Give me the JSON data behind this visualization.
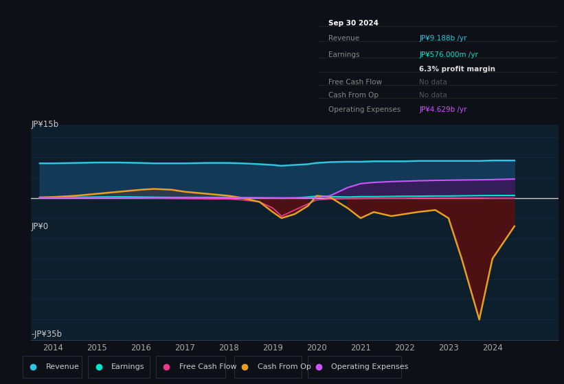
{
  "bg_color": "#0d1117",
  "chart_bg": "#0d1f2d",
  "ylim": [
    -35,
    18
  ],
  "xlim": [
    2013.5,
    2025.5
  ],
  "x_ticks": [
    2014,
    2015,
    2016,
    2017,
    2018,
    2019,
    2020,
    2021,
    2022,
    2023,
    2024
  ],
  "y_label_top": "JP¥15b",
  "y_label_bottom": "-JP¥35b",
  "y_zero_label": "JP¥0",
  "info_box": {
    "date": "Sep 30 2024",
    "revenue_label": "Revenue",
    "revenue_value": "JP¥9.188b /yr",
    "earnings_label": "Earnings",
    "earnings_value": "JP¥576.000m /yr",
    "profit_margin": "6.3% profit margin",
    "fcf_label": "Free Cash Flow",
    "fcf_value": "No data",
    "cfop_label": "Cash From Op",
    "cfop_value": "No data",
    "opex_label": "Operating Expenses",
    "opex_value": "JP¥4.629b /yr"
  },
  "years": [
    2013.7,
    2014.0,
    2014.5,
    2015.0,
    2015.5,
    2016.0,
    2016.3,
    2016.7,
    2017.0,
    2017.5,
    2018.0,
    2018.3,
    2018.7,
    2019.0,
    2019.2,
    2019.5,
    2019.8,
    2020.0,
    2020.3,
    2020.7,
    2021.0,
    2021.3,
    2021.7,
    2022.0,
    2022.3,
    2022.7,
    2023.0,
    2023.3,
    2023.7,
    2024.0,
    2024.5
  ],
  "revenue": [
    8.5,
    8.5,
    8.6,
    8.7,
    8.7,
    8.6,
    8.5,
    8.5,
    8.5,
    8.6,
    8.6,
    8.5,
    8.3,
    8.1,
    7.9,
    8.1,
    8.3,
    8.6,
    8.8,
    8.9,
    8.9,
    9.0,
    9.0,
    9.0,
    9.1,
    9.1,
    9.1,
    9.1,
    9.1,
    9.2,
    9.2
  ],
  "earnings": [
    0.1,
    0.1,
    0.15,
    0.2,
    0.25,
    0.2,
    0.15,
    0.1,
    0.1,
    0.1,
    0.1,
    0.05,
    0.0,
    -0.05,
    -0.1,
    -0.05,
    0.2,
    0.4,
    0.3,
    0.2,
    0.3,
    0.3,
    0.35,
    0.4,
    0.4,
    0.45,
    0.45,
    0.5,
    0.55,
    0.57,
    0.58
  ],
  "free_cash_flow": [
    0.05,
    0.05,
    0.05,
    0.02,
    0.0,
    -0.05,
    -0.1,
    -0.15,
    -0.2,
    -0.25,
    -0.3,
    -0.5,
    -1.0,
    -2.5,
    -4.5,
    -3.0,
    -1.5,
    -0.5,
    -0.3,
    -0.2,
    -0.15,
    -0.1,
    -0.1,
    -0.1,
    -0.05,
    -0.05,
    -0.05,
    -0.05,
    -0.05,
    -0.1,
    -0.1
  ],
  "cash_from_op": [
    0.1,
    0.2,
    0.5,
    1.0,
    1.5,
    2.0,
    2.2,
    2.0,
    1.5,
    1.0,
    0.5,
    0.0,
    -1.0,
    -3.5,
    -5.0,
    -4.0,
    -2.0,
    0.5,
    0.2,
    -2.5,
    -5.0,
    -3.5,
    -4.5,
    -4.0,
    -3.5,
    -3.0,
    -5.0,
    -15.0,
    -30.0,
    -15.0,
    -7.0
  ],
  "operating_expenses": [
    0.0,
    0.0,
    0.0,
    0.0,
    0.0,
    0.0,
    0.0,
    0.0,
    0.0,
    0.0,
    0.0,
    0.0,
    0.0,
    0.0,
    0.0,
    0.0,
    0.0,
    0.0,
    0.5,
    2.5,
    3.5,
    3.8,
    4.0,
    4.1,
    4.2,
    4.3,
    4.35,
    4.4,
    4.45,
    4.5,
    4.63
  ],
  "colors": {
    "revenue": "#2fc4e0",
    "earnings": "#00e5cc",
    "free_cash_flow": "#e83a8c",
    "cash_from_op": "#e8a020",
    "operating_expenses": "#cc55ff",
    "revenue_fill": "#144060",
    "cash_fill_pos": "#3a3a4a",
    "cash_fill_neg": "#5a0f0f",
    "opex_fill": "#3a1a5a"
  },
  "legend": [
    {
      "label": "Revenue",
      "color": "#2fc4e0"
    },
    {
      "label": "Earnings",
      "color": "#00e5cc"
    },
    {
      "label": "Free Cash Flow",
      "color": "#e83a8c"
    },
    {
      "label": "Cash From Op",
      "color": "#e8a020"
    },
    {
      "label": "Operating Expenses",
      "color": "#cc55ff"
    }
  ]
}
